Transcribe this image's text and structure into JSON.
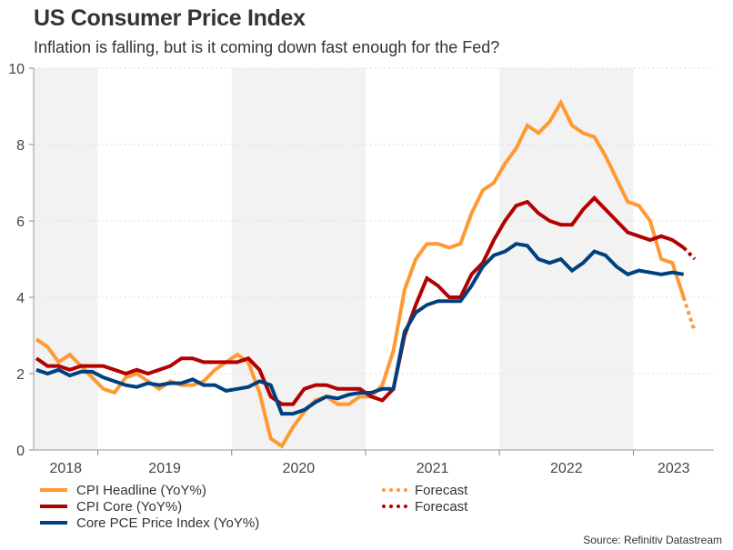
{
  "title": "US Consumer Price Index",
  "subtitle": "Inflation is falling, but is it coming down fast enough for the Fed?",
  "source": "Source: Refinitiv Datastream",
  "legend": [
    {
      "label": "CPI Headline (YoY%)",
      "color": "#ff9933",
      "style": "solid"
    },
    {
      "label": "CPI Core (YoY%)",
      "color": "#b30000",
      "style": "solid"
    },
    {
      "label": "Core PCE Price Index (YoY%)",
      "color": "#004080",
      "style": "solid"
    },
    {
      "label": "Forecast",
      "color": "#ff9933",
      "style": "dotted"
    },
    {
      "label": "Forecast",
      "color": "#b30000",
      "style": "dotted"
    }
  ],
  "chart_data": {
    "type": "line",
    "title": "US Consumer Price Index",
    "subtitle": "Inflation is falling, but is it coming down fast enough for the Fed?",
    "xlabel": "",
    "ylabel": "",
    "ylim": [
      0,
      10
    ],
    "yticks": [
      0,
      2,
      4,
      6,
      8,
      10
    ],
    "x_start": "2018-07",
    "x_frequency": "monthly",
    "x_range_months": [
      0,
      62
    ],
    "year_labels": [
      "2018",
      "2019",
      "2020",
      "2021",
      "2022",
      "2023"
    ],
    "shaded_years": [
      "2018",
      "2020",
      "2022"
    ],
    "grid": "horizontal-dotted",
    "legend_position": "bottom-left",
    "series": [
      {
        "name": "CPI Headline (YoY%)",
        "color": "#ff9933",
        "values": [
          2.9,
          2.7,
          2.3,
          2.5,
          2.2,
          1.9,
          1.6,
          1.5,
          1.9,
          2.0,
          1.8,
          1.6,
          1.8,
          1.7,
          1.7,
          1.8,
          2.1,
          2.3,
          2.5,
          2.3,
          1.5,
          0.3,
          0.1,
          0.6,
          1.0,
          1.3,
          1.4,
          1.2,
          1.2,
          1.4,
          1.4,
          1.7,
          2.6,
          4.2,
          5.0,
          5.4,
          5.4,
          5.3,
          5.4,
          6.2,
          6.8,
          7.0,
          7.5,
          7.9,
          8.5,
          8.3,
          8.6,
          9.1,
          8.5,
          8.3,
          8.2,
          7.7,
          7.1,
          6.5,
          6.4,
          6.0,
          5.0,
          4.9,
          4.0
        ],
        "forecast": [
          4.0,
          3.1
        ]
      },
      {
        "name": "CPI Core (YoY%)",
        "color": "#b30000",
        "values": [
          2.4,
          2.2,
          2.2,
          2.1,
          2.2,
          2.2,
          2.2,
          2.1,
          2.0,
          2.1,
          2.0,
          2.1,
          2.2,
          2.4,
          2.4,
          2.3,
          2.3,
          2.3,
          2.3,
          2.4,
          2.1,
          1.4,
          1.2,
          1.2,
          1.6,
          1.7,
          1.7,
          1.6,
          1.6,
          1.6,
          1.4,
          1.3,
          1.6,
          3.0,
          3.8,
          4.5,
          4.3,
          4.0,
          4.0,
          4.6,
          4.9,
          5.5,
          6.0,
          6.4,
          6.5,
          6.2,
          6.0,
          5.9,
          5.9,
          6.3,
          6.6,
          6.3,
          6.0,
          5.7,
          5.6,
          5.5,
          5.6,
          5.5,
          5.3
        ],
        "forecast": [
          5.3,
          5.0
        ]
      },
      {
        "name": "Core PCE Price Index (YoY%)",
        "color": "#004080",
        "values": [
          2.1,
          2.0,
          2.1,
          1.95,
          2.05,
          2.05,
          1.9,
          1.8,
          1.7,
          1.65,
          1.75,
          1.7,
          1.75,
          1.75,
          1.85,
          1.7,
          1.7,
          1.55,
          1.6,
          1.65,
          1.8,
          1.7,
          0.95,
          0.95,
          1.05,
          1.25,
          1.4,
          1.35,
          1.45,
          1.5,
          1.5,
          1.6,
          1.6,
          3.1,
          3.6,
          3.8,
          3.9,
          3.9,
          3.9,
          4.3,
          4.8,
          5.1,
          5.2,
          5.4,
          5.35,
          5.0,
          4.9,
          5.0,
          4.7,
          4.9,
          5.2,
          5.1,
          4.8,
          4.6,
          4.7,
          4.65,
          4.6,
          4.65,
          4.6
        ]
      }
    ]
  }
}
